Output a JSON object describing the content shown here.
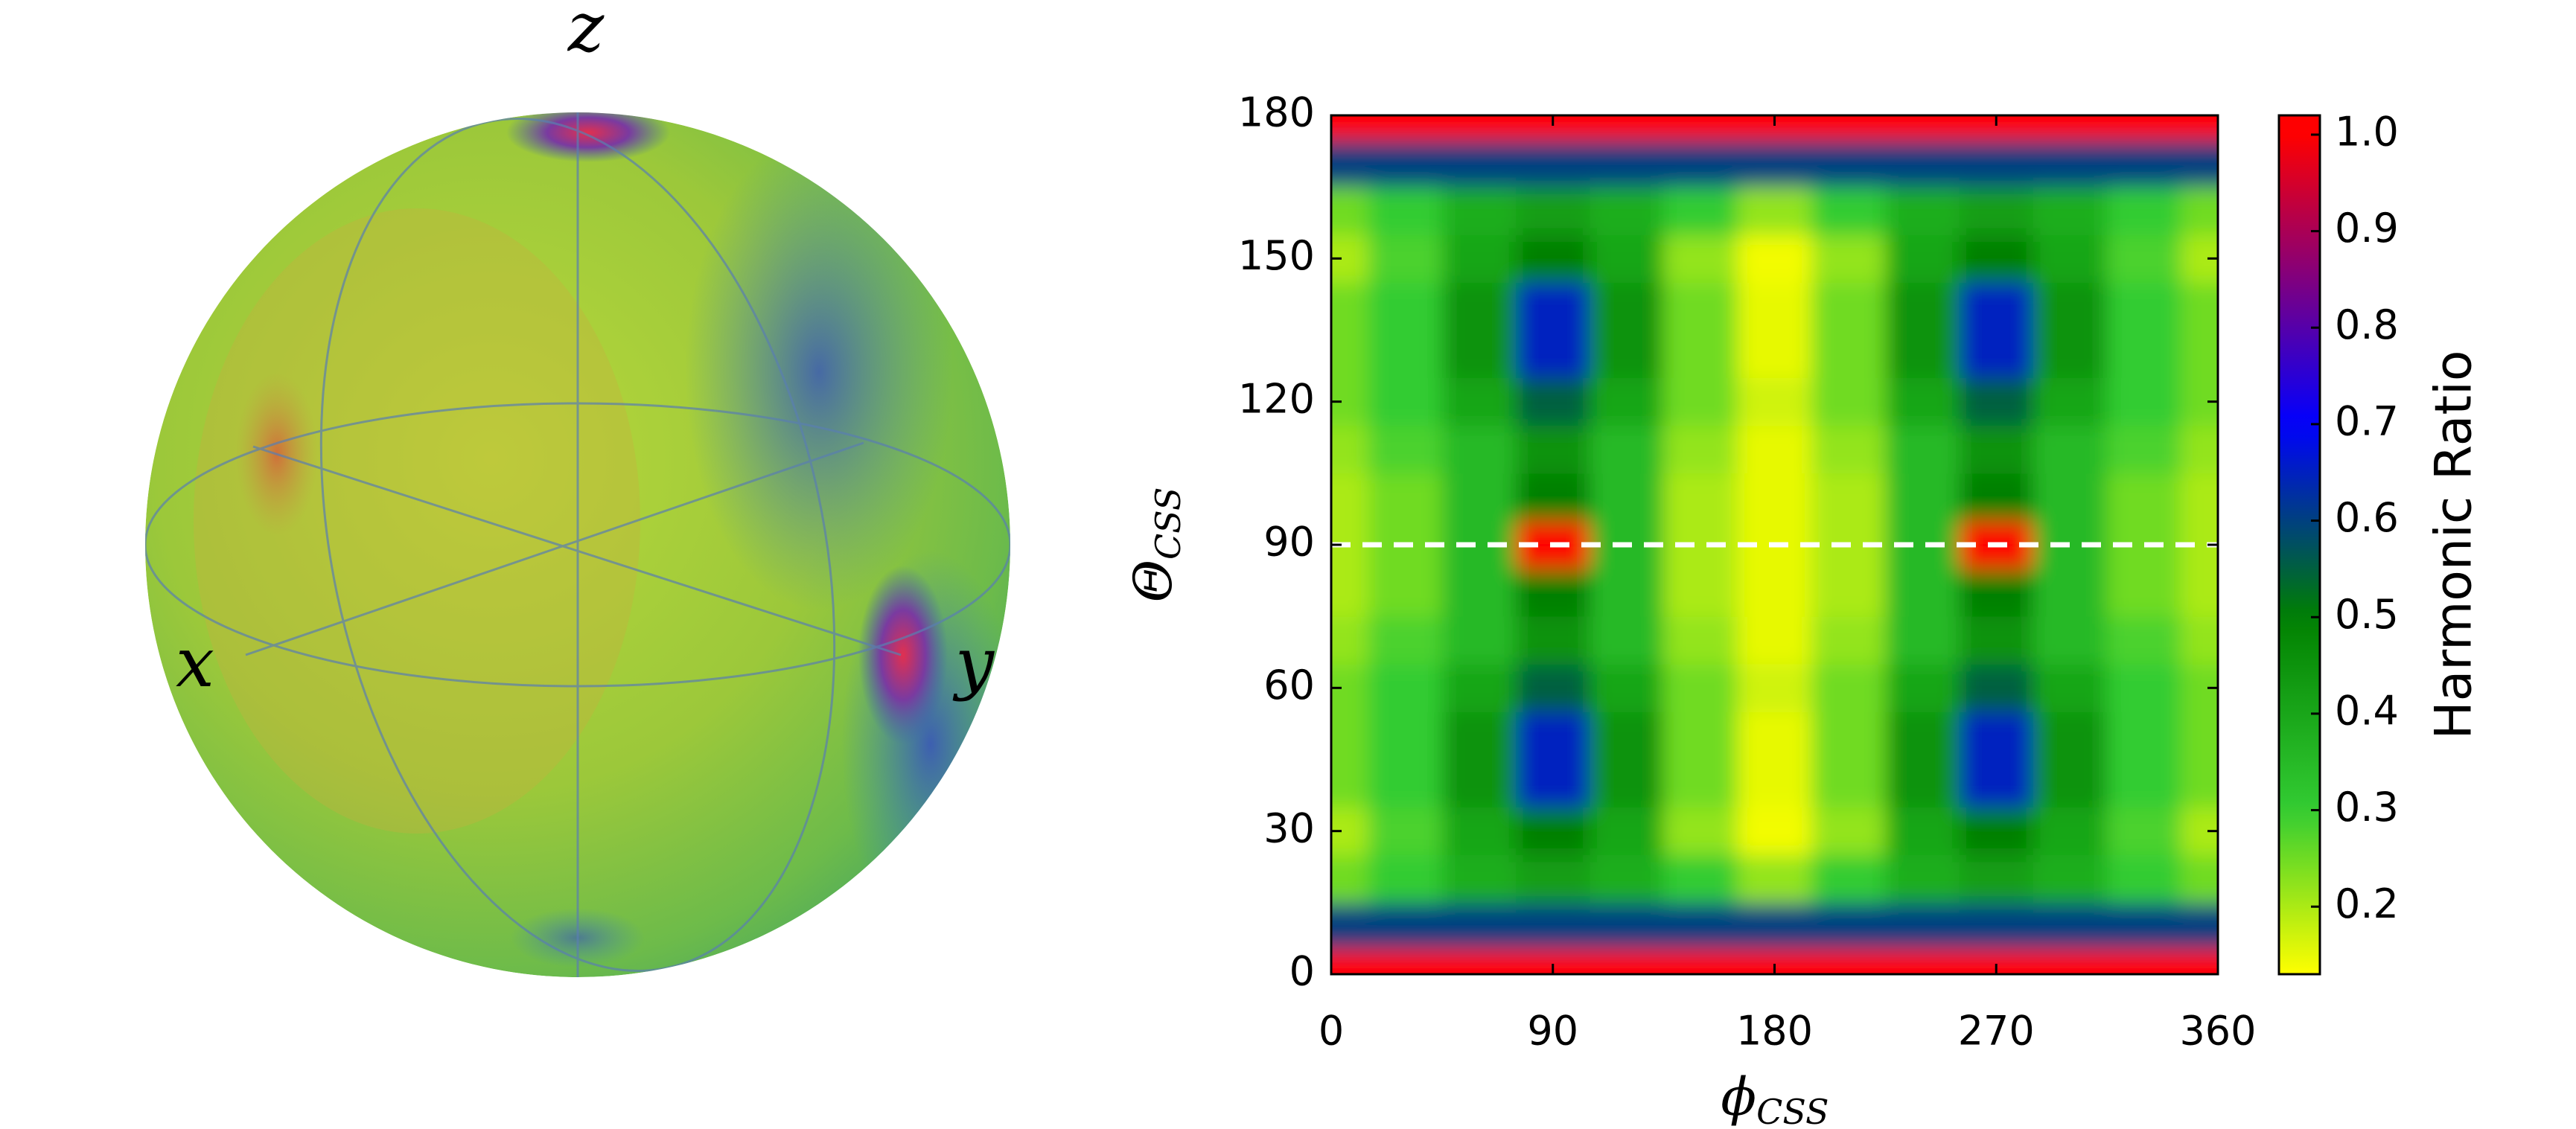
{
  "sphere": {
    "axis_labels": [
      "z",
      "x",
      "y"
    ]
  },
  "chart_data": {
    "type": "heatmap",
    "xlabel": [
      "ϕ",
      "CSS"
    ],
    "ylabel": [
      "Θ",
      "CSS"
    ],
    "x": [
      0,
      30,
      60,
      90,
      120,
      150,
      180,
      210,
      240,
      270,
      300,
      330,
      360
    ],
    "y": [
      0,
      10,
      20,
      30,
      40,
      50,
      60,
      70,
      80,
      90,
      100,
      110,
      120,
      130,
      140,
      150,
      160,
      170,
      180
    ],
    "values": [
      [
        1.0,
        1.0,
        1.0,
        1.0,
        1.0,
        1.0,
        1.0,
        1.0,
        1.0,
        1.0,
        1.0,
        1.0,
        1.0
      ],
      [
        0.6,
        0.6,
        0.6,
        0.6,
        0.6,
        0.6,
        0.6,
        0.6,
        0.6,
        0.6,
        0.6,
        0.6,
        0.6
      ],
      [
        0.25,
        0.3,
        0.38,
        0.42,
        0.38,
        0.3,
        0.22,
        0.3,
        0.38,
        0.42,
        0.38,
        0.3,
        0.25
      ],
      [
        0.2,
        0.28,
        0.4,
        0.5,
        0.4,
        0.22,
        0.14,
        0.22,
        0.4,
        0.5,
        0.4,
        0.28,
        0.2
      ],
      [
        0.25,
        0.3,
        0.45,
        0.65,
        0.45,
        0.25,
        0.15,
        0.25,
        0.45,
        0.65,
        0.45,
        0.3,
        0.25
      ],
      [
        0.25,
        0.3,
        0.45,
        0.65,
        0.45,
        0.25,
        0.15,
        0.25,
        0.45,
        0.65,
        0.45,
        0.3,
        0.25
      ],
      [
        0.25,
        0.3,
        0.4,
        0.55,
        0.4,
        0.25,
        0.17,
        0.25,
        0.4,
        0.55,
        0.4,
        0.3,
        0.25
      ],
      [
        0.22,
        0.28,
        0.35,
        0.45,
        0.35,
        0.22,
        0.15,
        0.22,
        0.35,
        0.45,
        0.35,
        0.28,
        0.22
      ],
      [
        0.2,
        0.25,
        0.35,
        0.5,
        0.35,
        0.2,
        0.15,
        0.2,
        0.35,
        0.5,
        0.35,
        0.25,
        0.2
      ],
      [
        0.2,
        0.25,
        0.35,
        1.0,
        0.35,
        0.2,
        0.15,
        0.2,
        0.35,
        1.0,
        0.35,
        0.25,
        0.2
      ],
      [
        0.2,
        0.25,
        0.35,
        0.5,
        0.35,
        0.2,
        0.15,
        0.2,
        0.35,
        0.5,
        0.35,
        0.25,
        0.2
      ],
      [
        0.22,
        0.28,
        0.35,
        0.45,
        0.35,
        0.22,
        0.15,
        0.22,
        0.35,
        0.45,
        0.35,
        0.28,
        0.22
      ],
      [
        0.25,
        0.3,
        0.4,
        0.55,
        0.4,
        0.25,
        0.17,
        0.25,
        0.4,
        0.55,
        0.4,
        0.3,
        0.25
      ],
      [
        0.25,
        0.3,
        0.45,
        0.65,
        0.45,
        0.25,
        0.15,
        0.25,
        0.45,
        0.65,
        0.45,
        0.3,
        0.25
      ],
      [
        0.25,
        0.3,
        0.45,
        0.65,
        0.45,
        0.25,
        0.15,
        0.25,
        0.45,
        0.65,
        0.45,
        0.3,
        0.25
      ],
      [
        0.2,
        0.28,
        0.4,
        0.5,
        0.4,
        0.22,
        0.14,
        0.22,
        0.4,
        0.5,
        0.4,
        0.28,
        0.2
      ],
      [
        0.25,
        0.3,
        0.38,
        0.42,
        0.38,
        0.3,
        0.22,
        0.3,
        0.38,
        0.42,
        0.38,
        0.3,
        0.25
      ],
      [
        0.6,
        0.6,
        0.6,
        0.6,
        0.6,
        0.6,
        0.6,
        0.6,
        0.6,
        0.6,
        0.6,
        0.6,
        0.6
      ],
      [
        1.0,
        1.0,
        1.0,
        1.0,
        1.0,
        1.0,
        1.0,
        1.0,
        1.0,
        1.0,
        1.0,
        1.0,
        1.0
      ]
    ],
    "xlim": [
      0,
      360
    ],
    "ylim": [
      0,
      180
    ],
    "xticks": [
      0,
      90,
      180,
      270,
      360
    ],
    "yticks": [
      0,
      30,
      60,
      90,
      120,
      150,
      180
    ],
    "hline": 90,
    "hline_color": "#ffffff",
    "colormap": [
      [
        0.13,
        "#ffff00"
      ],
      [
        0.3,
        "#33cc33"
      ],
      [
        0.5,
        "#008000"
      ],
      [
        0.7,
        "#0000ff"
      ],
      [
        1.0,
        "#ff0000"
      ]
    ],
    "colorbar": {
      "label": "Harmonic Ratio",
      "lim": [
        0.13,
        1.02
      ],
      "ticks": [
        0.2,
        0.3,
        0.4,
        0.5,
        0.6,
        0.7,
        0.8,
        0.9,
        {
          "value": 1.0,
          "label": "1.0"
        }
      ]
    }
  }
}
